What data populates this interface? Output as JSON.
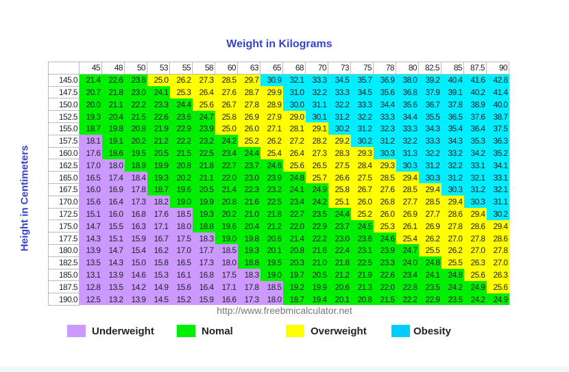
{
  "chart_data": {
    "type": "heatmap",
    "title": "Weight in Kilograms",
    "ylabel": "Height in Centimeters",
    "source": "http://www.freebmicalculator.net",
    "columns": [
      "45",
      "48",
      "50",
      "53",
      "55",
      "58",
      "60",
      "63",
      "65",
      "68",
      "70",
      "73",
      "75",
      "78",
      "80",
      "82.5",
      "85",
      "87.5",
      "90"
    ],
    "rows": [
      {
        "height": "145.0",
        "values": [
          21.4,
          22.6,
          23.8,
          25.0,
          26.2,
          27.3,
          28.5,
          29.7,
          30.9,
          32.1,
          33.3,
          34.5,
          35.7,
          36.9,
          38.0,
          39.2,
          40.4,
          41.6,
          42.8
        ]
      },
      {
        "height": "147.5",
        "values": [
          20.7,
          21.8,
          23.0,
          24.1,
          25.3,
          26.4,
          27.6,
          28.7,
          29.9,
          31.0,
          32.2,
          33.3,
          34.5,
          35.6,
          36.8,
          37.9,
          39.1,
          40.2,
          41.4
        ]
      },
      {
        "height": "150.0",
        "values": [
          20.0,
          21.1,
          22.2,
          23.3,
          24.4,
          25.6,
          26.7,
          27.8,
          28.9,
          30.0,
          31.1,
          32.2,
          33.3,
          34.4,
          35.6,
          36.7,
          37.8,
          38.9,
          40.0
        ]
      },
      {
        "height": "152.5",
        "values": [
          19.3,
          20.4,
          21.5,
          22.6,
          23.6,
          24.7,
          25.8,
          26.9,
          27.9,
          29.0,
          30.1,
          31.2,
          32.2,
          33.3,
          34.4,
          35.5,
          36.5,
          37.6,
          38.7
        ]
      },
      {
        "height": "155.0",
        "values": [
          18.7,
          19.8,
          20.8,
          21.9,
          22.9,
          23.9,
          25.0,
          26.0,
          27.1,
          28.1,
          29.1,
          30.2,
          31.2,
          32.3,
          33.3,
          34.3,
          35.4,
          36.4,
          37.5
        ]
      },
      {
        "height": "157.5",
        "values": [
          18.1,
          19.1,
          20.2,
          21.2,
          22.2,
          23.2,
          24.2,
          25.2,
          26.2,
          27.2,
          28.2,
          29.2,
          30.2,
          31.2,
          32.2,
          33.3,
          34.3,
          35.3,
          36.3
        ]
      },
      {
        "height": "160.0",
        "values": [
          17.6,
          18.6,
          19.5,
          20.5,
          21.5,
          22.5,
          23.4,
          24.4,
          25.4,
          26.4,
          27.3,
          28.3,
          29.3,
          30.3,
          31.3,
          32.2,
          33.2,
          34.2,
          35.2
        ]
      },
      {
        "height": "162.5",
        "values": [
          17.0,
          18.0,
          18.9,
          19.9,
          20.8,
          21.8,
          22.7,
          23.7,
          24.6,
          25.6,
          26.5,
          27.5,
          28.4,
          29.3,
          30.3,
          31.2,
          32.2,
          33.1,
          34.1
        ]
      },
      {
        "height": "165.0",
        "values": [
          16.5,
          17.4,
          18.4,
          19.3,
          20.2,
          21.1,
          22.0,
          23.0,
          23.9,
          24.8,
          25.7,
          26.6,
          27.5,
          28.5,
          29.4,
          30.3,
          31.2,
          32.1,
          33.1
        ]
      },
      {
        "height": "167.5",
        "values": [
          16.0,
          16.9,
          17.8,
          18.7,
          19.6,
          20.5,
          21.4,
          22.3,
          23.2,
          24.1,
          24.9,
          25.8,
          26.7,
          27.6,
          28.5,
          29.4,
          30.3,
          31.2,
          32.1
        ]
      },
      {
        "height": "170.0",
        "values": [
          15.6,
          16.4,
          17.3,
          18.2,
          19.0,
          19.9,
          20.8,
          21.6,
          22.5,
          23.4,
          24.2,
          25.1,
          26.0,
          26.8,
          27.7,
          28.5,
          29.4,
          30.3,
          31.1
        ]
      },
      {
        "height": "172.5",
        "values": [
          15.1,
          16.0,
          16.8,
          17.6,
          18.5,
          19.3,
          20.2,
          21.0,
          21.8,
          22.7,
          23.5,
          24.4,
          25.2,
          26.0,
          26.9,
          27.7,
          28.6,
          29.4,
          30.2
        ]
      },
      {
        "height": "175.0",
        "values": [
          14.7,
          15.5,
          16.3,
          17.1,
          18.0,
          18.8,
          19.6,
          20.4,
          21.2,
          22.0,
          22.9,
          23.7,
          24.5,
          25.3,
          26.1,
          26.9,
          27.8,
          28.6,
          29.4
        ]
      },
      {
        "height": "177.5",
        "values": [
          14.3,
          15.1,
          15.9,
          16.7,
          17.5,
          18.3,
          19.0,
          19.8,
          20.6,
          21.4,
          22.2,
          23.0,
          23.8,
          24.6,
          25.4,
          26.2,
          27.0,
          27.8,
          28.6
        ]
      },
      {
        "height": "180.0",
        "values": [
          13.9,
          14.7,
          15.4,
          16.2,
          17.0,
          17.7,
          18.5,
          19.3,
          20.1,
          20.8,
          21.6,
          22.4,
          23.1,
          23.9,
          24.7,
          25.5,
          26.2,
          27.0,
          27.8
        ]
      },
      {
        "height": "182.5",
        "values": [
          13.5,
          14.3,
          15.0,
          15.8,
          16.5,
          17.3,
          18.0,
          18.8,
          19.5,
          20.3,
          21.0,
          21.8,
          22.5,
          23.3,
          24.0,
          24.8,
          25.5,
          26.3,
          27.0
        ]
      },
      {
        "height": "185.0",
        "values": [
          13.1,
          13.9,
          14.6,
          15.3,
          16.1,
          16.8,
          17.5,
          18.3,
          19.0,
          19.7,
          20.5,
          21.2,
          21.9,
          22.6,
          23.4,
          24.1,
          24.8,
          25.6,
          26.3
        ]
      },
      {
        "height": "187.5",
        "values": [
          12.8,
          13.5,
          14.2,
          14.9,
          15.6,
          16.4,
          17.1,
          17.8,
          18.5,
          19.2,
          19.9,
          20.6,
          21.3,
          22.0,
          22.8,
          23.5,
          24.2,
          24.9,
          25.6
        ]
      },
      {
        "height": "190.0",
        "values": [
          12.5,
          13.2,
          13.9,
          14.5,
          15.2,
          15.9,
          16.6,
          17.3,
          18.0,
          18.7,
          19.4,
          20.1,
          20.8,
          21.5,
          22.2,
          22.9,
          23.5,
          24.2,
          24.9
        ]
      }
    ],
    "legend": [
      {
        "label": "Underweight",
        "color": "#cc99ff"
      },
      {
        "label": "Nomal",
        "color": "#00ee00"
      },
      {
        "label": "Overweight",
        "color": "#ffff00"
      },
      {
        "label": "Obesity",
        "color": "#00ccff"
      }
    ]
  }
}
